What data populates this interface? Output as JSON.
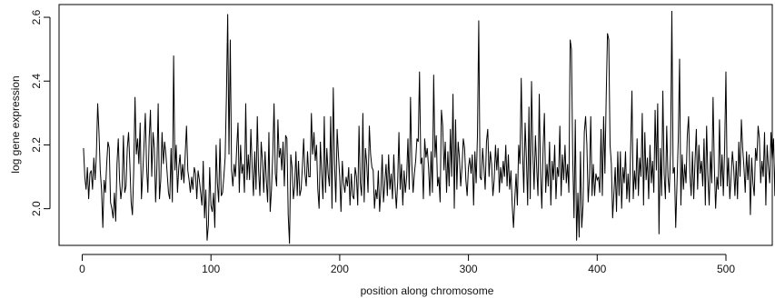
{
  "chart_data": {
    "type": "line",
    "title": "",
    "xlabel": "position along chromosome",
    "ylabel": "log gene expression",
    "xlim": [
      -18,
      536
    ],
    "ylim": [
      1.885,
      2.64
    ],
    "xticks": [
      0,
      100,
      200,
      300,
      400,
      500
    ],
    "xtick_labels": [
      "0",
      "100",
      "200",
      "300",
      "400",
      "500"
    ],
    "yticks": [
      2.0,
      2.2,
      2.4,
      2.6
    ],
    "ytick_labels": [
      "2.0",
      "2.2",
      "2.4",
      "2.6"
    ],
    "grid": false,
    "legend": "none",
    "line_color": "#000000",
    "series": [
      {
        "x_start": 1,
        "x_step": 1,
        "values": [
          2.19,
          2.1,
          2.06,
          2.13,
          2.03,
          2.11,
          2.12,
          2.06,
          2.16,
          2.09,
          2.17,
          2.33,
          2.24,
          2.12,
          2.06,
          1.94,
          2.09,
          2.05,
          2.14,
          2.21,
          2.19,
          2.02,
          2.0,
          1.97,
          2.05,
          1.96,
          2.14,
          2.22,
          2.09,
          2.03,
          2.07,
          2.23,
          2.05,
          2.07,
          2.19,
          2.24,
          2.14,
          2.02,
          1.98,
          2.12,
          2.35,
          2.17,
          2.22,
          2.14,
          2.27,
          2.03,
          2.11,
          2.2,
          2.3,
          2.13,
          2.05,
          2.22,
          2.31,
          2.1,
          2.24,
          2.19,
          2.02,
          2.13,
          2.33,
          2.03,
          2.09,
          2.24,
          2.14,
          2.21,
          2.17,
          2.11,
          2.05,
          2.03,
          2.19,
          2.02,
          2.48,
          2.12,
          2.2,
          2.05,
          2.13,
          2.17,
          2.09,
          2.14,
          2.08,
          2.17,
          2.26,
          2.12,
          2.09,
          2.05,
          2.1,
          2.06,
          2.13,
          2.11,
          2.03,
          2.12,
          2.09,
          2.05,
          2.01,
          2.15,
          1.97,
          2.06,
          1.9,
          1.95,
          2.13,
          2.01,
          1.99,
          2.05,
          1.94,
          2.2,
          2.08,
          2.02,
          2.22,
          2.04,
          2.05,
          2.1,
          2.16,
          2.35,
          2.61,
          2.17,
          2.53,
          2.12,
          2.07,
          2.14,
          2.1,
          2.19,
          2.27,
          2.05,
          2.2,
          2.11,
          2.14,
          2.05,
          2.33,
          2.09,
          2.17,
          2.09,
          2.25,
          2.13,
          2.04,
          2.18,
          2.06,
          2.29,
          2.12,
          2.04,
          2.21,
          2.15,
          2.05,
          2.18,
          2.09,
          2.02,
          2.24,
          1.99,
          2.06,
          2.17,
          2.33,
          2.11,
          2.07,
          2.28,
          2.16,
          2.19,
          2.12,
          2.21,
          2.07,
          2.23,
          2.22,
          1.98,
          1.89,
          2.17,
          2.13,
          2.03,
          2.07,
          2.18,
          2.04,
          2.15,
          2.04,
          2.06,
          2.13,
          2.22,
          2.11,
          2.07,
          2.18,
          2.1,
          2.1,
          2.3,
          2.17,
          2.24,
          2.15,
          2.2,
          2.06,
          2.0,
          2.21,
          2.11,
          2.03,
          2.29,
          2.05,
          2.19,
          2.11,
          2.07,
          2.29,
          2.0,
          2.38,
          2.14,
          2.02,
          2.25,
          2.17,
          2.1,
          1.99,
          2.15,
          2.08,
          2.05,
          2.1,
          2.07,
          2.13,
          2.01,
          2.11,
          2.04,
          2.03,
          2.13,
          2.1,
          2.01,
          2.26,
          2.08,
          2.04,
          2.3,
          2.02,
          2.19,
          2.14,
          2.05,
          2.26,
          2.17,
          2.13,
          2.12,
          2.0,
          2.06,
          2.03,
          2.12,
          1.99,
          2.06,
          2.17,
          2.02,
          2.08,
          2.14,
          2.04,
          2.17,
          2.06,
          2.11,
          2.03,
          2.17,
          2.07,
          2.0,
          2.08,
          2.24,
          2.06,
          2.14,
          2.01,
          2.12,
          2.05,
          2.1,
          2.22,
          2.06,
          2.35,
          2.14,
          2.05,
          2.11,
          2.15,
          2.22,
          2.21,
          2.43,
          2.14,
          2.16,
          2.03,
          2.22,
          2.16,
          2.19,
          2.13,
          2.04,
          2.18,
          2.05,
          2.42,
          2.16,
          2.23,
          2.07,
          2.1,
          2.02,
          2.31,
          2.26,
          2.12,
          2.21,
          2.05,
          2.18,
          2.07,
          2.25,
          2.1,
          2.36,
          2.0,
          2.28,
          2.06,
          2.21,
          2.16,
          2.07,
          2.13,
          2.22,
          2.19,
          2.09,
          2.04,
          2.13,
          2.16,
          2.11,
          2.17,
          2.01,
          2.18,
          2.08,
          2.23,
          2.59,
          2.1,
          2.09,
          2.19,
          2.13,
          2.06,
          2.21,
          2.25,
          2.1,
          2.18,
          2.14,
          2.04,
          2.09,
          2.2,
          2.12,
          2.19,
          2.05,
          2.13,
          2.08,
          2.15,
          2.1,
          2.2,
          2.07,
          2.17,
          2.06,
          2.12,
          2.01,
          1.94,
          2.03,
          2.11,
          2.01,
          2.2,
          2.14,
          2.41,
          2.18,
          2.05,
          2.27,
          2.16,
          2.01,
          2.32,
          2.03,
          2.4,
          2.18,
          2.06,
          2.23,
          2.13,
          2.04,
          2.36,
          2.11,
          2.0,
          2.19,
          2.3,
          2.05,
          2.14,
          2.07,
          2.21,
          2.01,
          2.15,
          2.09,
          2.2,
          2.03,
          2.13,
          2.1,
          2.26,
          2.04,
          2.17,
          2.09,
          2.2,
          2.08,
          2.14,
          2.05,
          2.53,
          2.5,
          2.16,
          1.97,
          2.28,
          1.9,
          2.05,
          1.91,
          2.18,
          1.94,
          2.01,
          2.24,
          2.29,
          2.2,
          2.02,
          2.1,
          2.29,
          2.04,
          2.14,
          2.04,
          2.11,
          2.09,
          2.1,
          2.05,
          2.25,
          2.04,
          2.29,
          2.11,
          2.35,
          2.55,
          2.53,
          2.2,
          2.14,
          1.97,
          2.05,
          2.13,
          1.99,
          2.18,
          2.04,
          2.18,
          2.0,
          2.13,
          2.08,
          2.18,
          2.03,
          2.11,
          2.02,
          2.19,
          2.37,
          2.03,
          2.12,
          2.06,
          2.22,
          2.04,
          2.16,
          2.1,
          2.3,
          2.01,
          2.24,
          2.09,
          2.16,
          2.03,
          2.2,
          2.08,
          2.15,
          2.05,
          2.31,
          2.12,
          2.33,
          1.92,
          2.19,
          2.04,
          2.37,
          2.11,
          2.03,
          2.26,
          2.1,
          2.05,
          2.18,
          2.62,
          2.11,
          2.13,
          1.94,
          2.08,
          2.22,
          2.47,
          2.01,
          2.17,
          2.06,
          2.14,
          2.08,
          2.23,
          2.29,
          2.11,
          2.04,
          2.18,
          2.03,
          2.15,
          2.25,
          2.06,
          2.2,
          2.11,
          2.15,
          2.07,
          2.22,
          2.01,
          2.26,
          2.1,
          2.01,
          2.18,
          2.08,
          2.35,
          2.13,
          2.0,
          2.1,
          2.06,
          2.28,
          2.07,
          2.17,
          2.04,
          2.19,
          2.43,
          2.07,
          2.16,
          2.03,
          2.1,
          2.18,
          2.13,
          2.04,
          2.15,
          2.03,
          2.21,
          2.1,
          2.28,
          2.19,
          2.13,
          2.05,
          2.18,
          2.09,
          2.17,
          1.98,
          2.16,
          2.08,
          2.04,
          2.19,
          2.15,
          2.26,
          2.22,
          2.08,
          2.15,
          2.1,
          2.24,
          2.01,
          2.2,
          2.13,
          2.08,
          2.24,
          2.15,
          2.22,
          2.04,
          2.26,
          2.03,
          2.16
        ]
      }
    ]
  }
}
